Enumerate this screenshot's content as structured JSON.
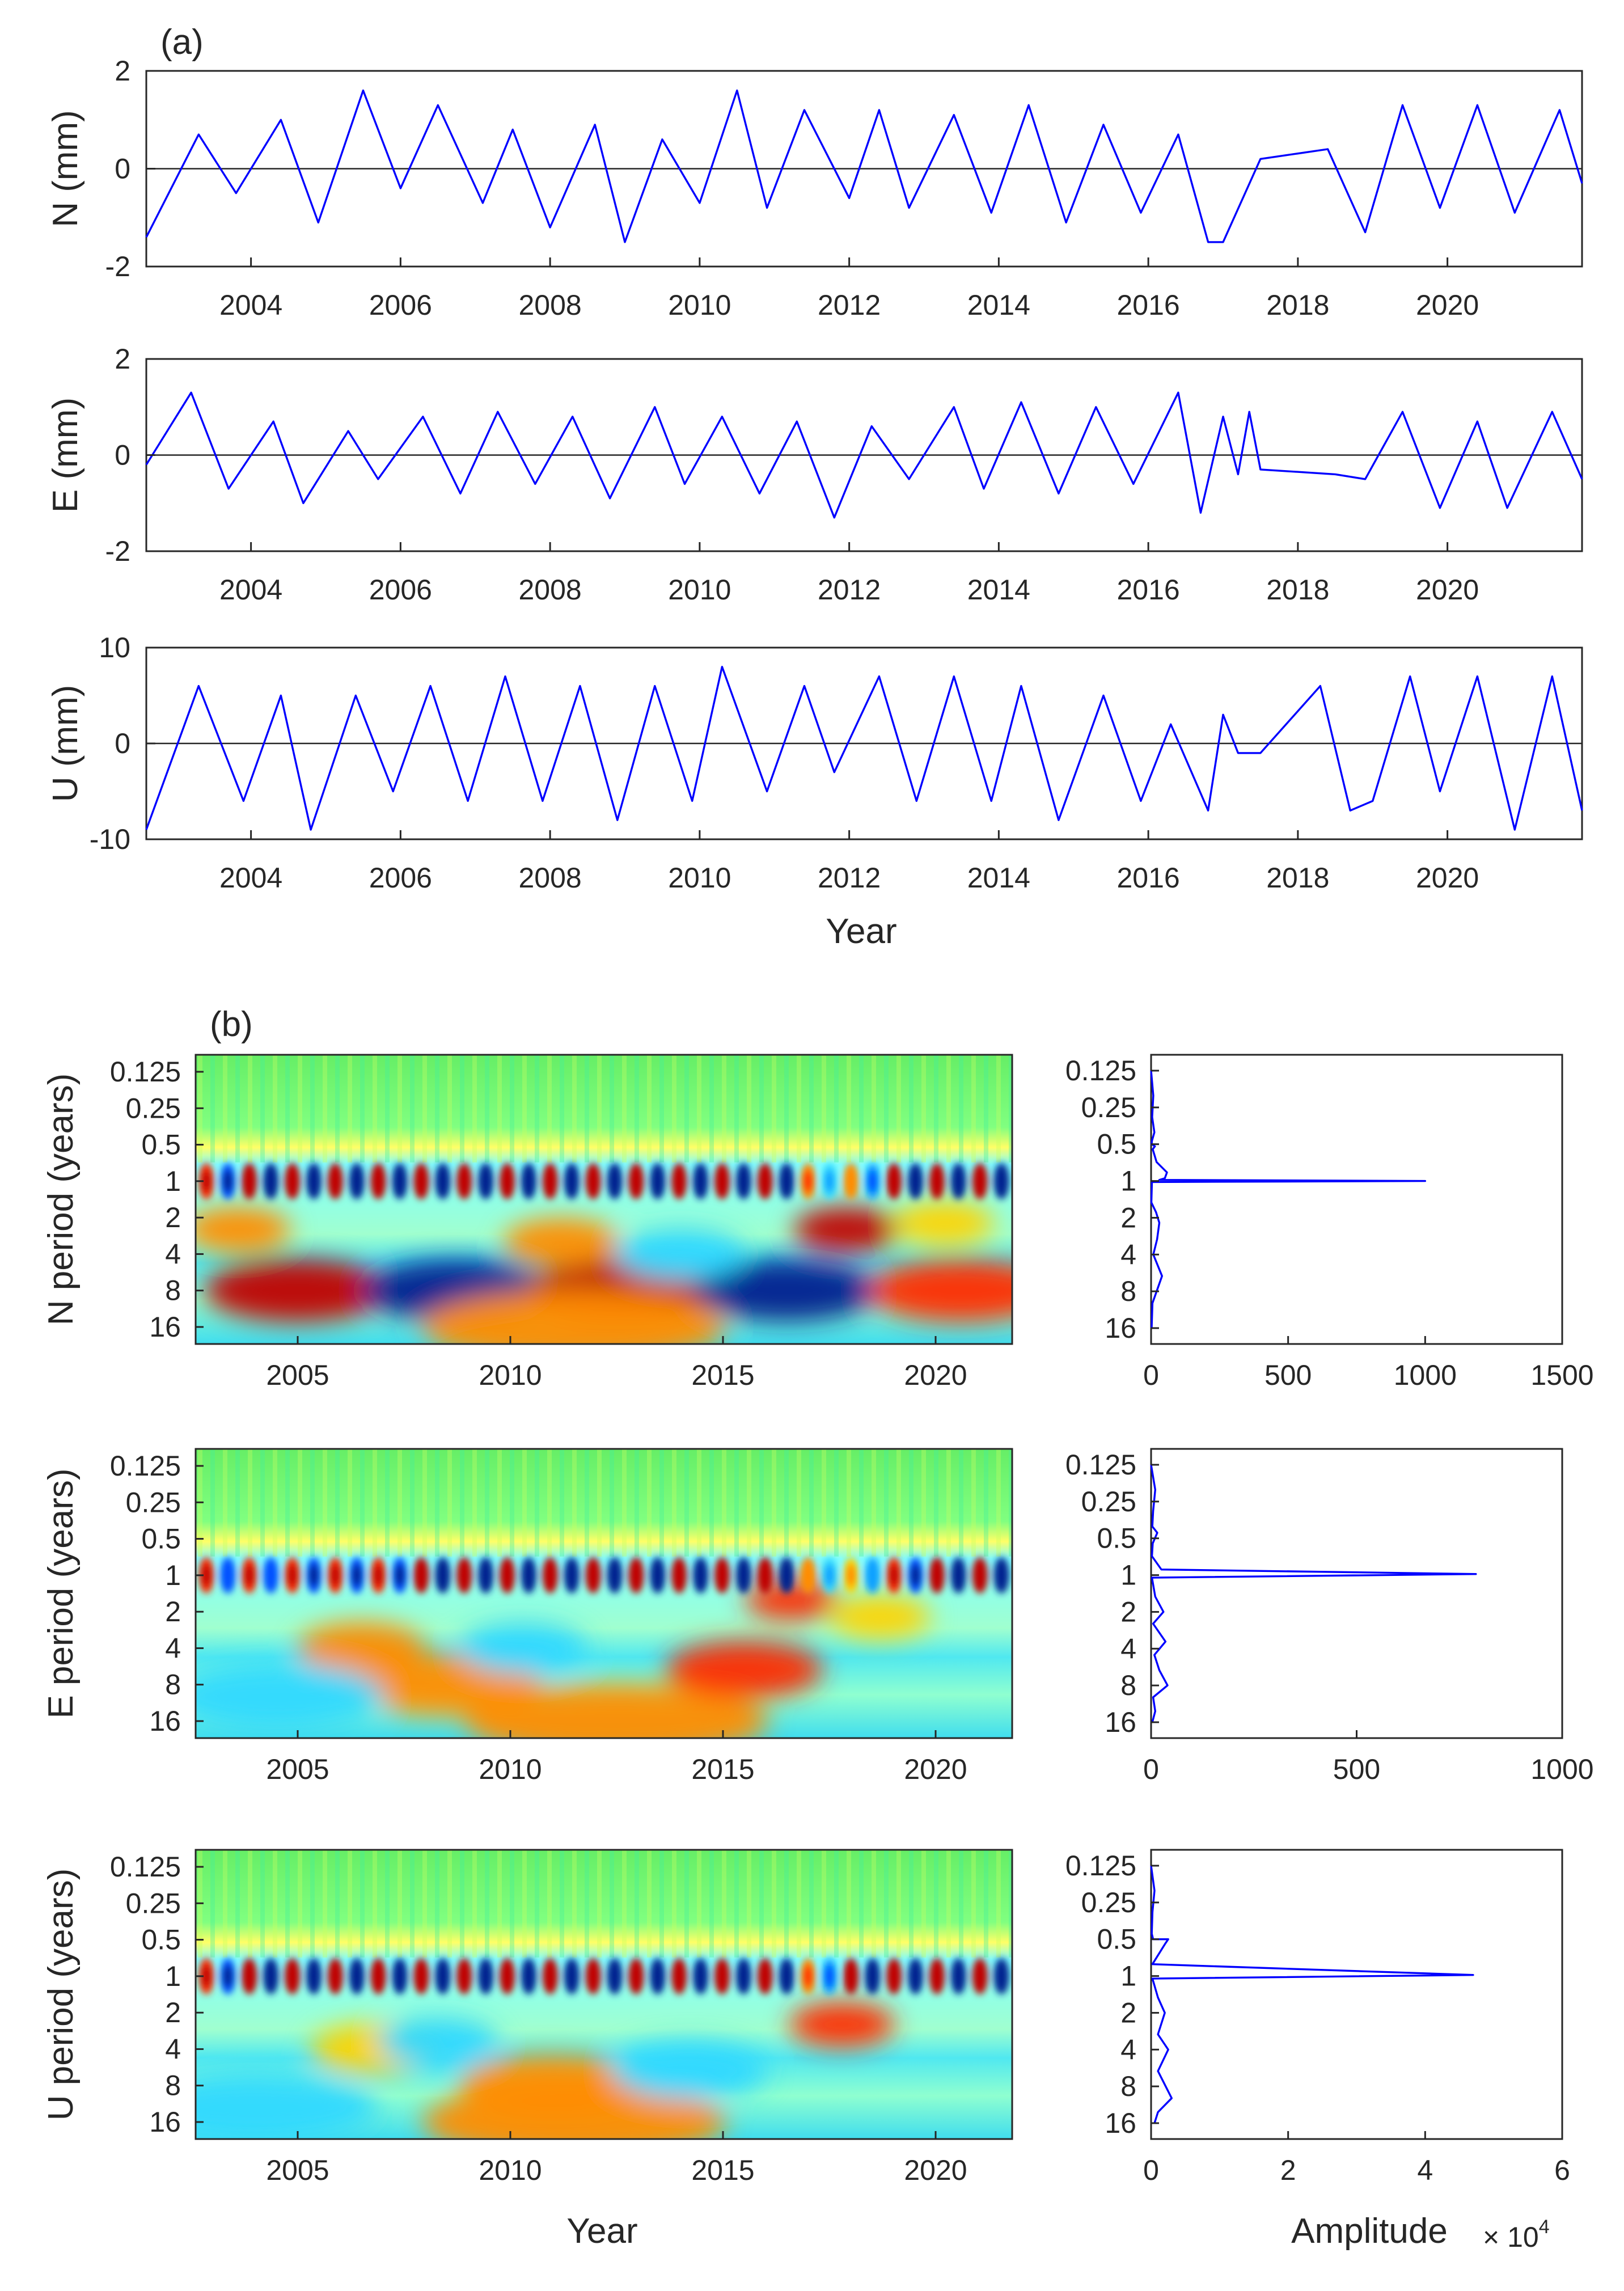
{
  "colors": {
    "line": "#0000ff",
    "axis": "#262626"
  },
  "panel_a_label": "(a)",
  "panel_b_label": "(b)",
  "chart_data": [
    {
      "id": "N",
      "type": "line",
      "x": [
        2002.6,
        2003.3,
        2003.8,
        2004.4,
        2004.9,
        2005.5,
        2006.0,
        2006.5,
        2007.1,
        2007.5,
        2008.0,
        2008.6,
        2009.0,
        2009.5,
        2010.0,
        2010.5,
        2010.9,
        2011.4,
        2012.0,
        2012.4,
        2012.8,
        2013.4,
        2013.9,
        2014.4,
        2014.9,
        2015.4,
        2015.9,
        2016.4,
        2016.8,
        2017.0,
        2017.5,
        2018.4,
        2018.9,
        2019.4,
        2019.9,
        2020.4,
        2020.9,
        2021.5,
        2021.8
      ],
      "y": [
        -1.4,
        0.7,
        -0.5,
        1.0,
        -1.1,
        1.6,
        -0.4,
        1.3,
        -0.7,
        0.8,
        -1.2,
        0.9,
        -1.5,
        0.6,
        -0.7,
        1.6,
        -0.8,
        1.2,
        -0.6,
        1.2,
        -0.8,
        1.1,
        -0.9,
        1.3,
        -1.1,
        0.9,
        -0.9,
        0.7,
        -1.5,
        -1.5,
        0.2,
        0.4,
        -1.3,
        1.3,
        -0.8,
        1.3,
        -0.9,
        1.2,
        -0.3
      ],
      "ylabel": "N (mm)",
      "xlabel": "",
      "xlim": [
        2002.6,
        2021.8
      ],
      "ylim": [
        -2,
        2
      ],
      "xticks": [
        "2004",
        "2006",
        "2008",
        "2010",
        "2012",
        "2014",
        "2016",
        "2018",
        "2020"
      ],
      "yticks": [
        "-2",
        "0",
        "2"
      ]
    },
    {
      "id": "E",
      "type": "line",
      "x": [
        2002.6,
        2003.2,
        2003.7,
        2004.3,
        2004.7,
        2005.3,
        2005.7,
        2006.3,
        2006.8,
        2007.3,
        2007.8,
        2008.3,
        2008.8,
        2009.4,
        2009.8,
        2010.3,
        2010.8,
        2011.3,
        2011.8,
        2012.3,
        2012.8,
        2013.4,
        2013.8,
        2014.3,
        2014.8,
        2015.3,
        2015.8,
        2016.4,
        2016.7,
        2017.0,
        2017.2,
        2017.35,
        2017.5,
        2018.5,
        2018.9,
        2019.4,
        2019.9,
        2020.4,
        2020.8,
        2021.4,
        2021.8
      ],
      "y": [
        -0.2,
        1.3,
        -0.7,
        0.7,
        -1.0,
        0.5,
        -0.5,
        0.8,
        -0.8,
        0.9,
        -0.6,
        0.8,
        -0.9,
        1.0,
        -0.6,
        0.8,
        -0.8,
        0.7,
        -1.3,
        0.6,
        -0.5,
        1.0,
        -0.7,
        1.1,
        -0.8,
        1.0,
        -0.6,
        1.3,
        -1.2,
        0.8,
        -0.4,
        0.9,
        -0.3,
        -0.4,
        -0.5,
        0.9,
        -1.1,
        0.7,
        -1.1,
        0.9,
        -0.5
      ],
      "ylabel": "E (mm)",
      "xlabel": "",
      "xlim": [
        2002.6,
        2021.8
      ],
      "ylim": [
        -2,
        2
      ],
      "xticks": [
        "2004",
        "2006",
        "2008",
        "2010",
        "2012",
        "2014",
        "2016",
        "2018",
        "2020"
      ],
      "yticks": [
        "-2",
        "0",
        "2"
      ]
    },
    {
      "id": "U",
      "type": "line",
      "x": [
        2002.6,
        2003.3,
        2003.9,
        2004.4,
        2004.8,
        2005.4,
        2005.9,
        2006.4,
        2006.9,
        2007.4,
        2007.9,
        2008.4,
        2008.9,
        2009.4,
        2009.9,
        2010.3,
        2010.9,
        2011.4,
        2011.8,
        2012.4,
        2012.9,
        2013.4,
        2013.9,
        2014.3,
        2014.8,
        2015.4,
        2015.9,
        2016.3,
        2016.8,
        2017.0,
        2017.2,
        2017.5,
        2018.3,
        2018.7,
        2019.0,
        2019.5,
        2019.9,
        2020.4,
        2020.9,
        2021.4,
        2021.8
      ],
      "y": [
        -9,
        6,
        -6,
        5,
        -9,
        5,
        -5,
        6,
        -6,
        7,
        -6,
        6,
        -8,
        6,
        -6,
        8,
        -5,
        6,
        -3,
        7,
        -6,
        7,
        -6,
        6,
        -8,
        5,
        -6,
        2,
        -7,
        3,
        -1,
        -1,
        6,
        -7,
        -6,
        7,
        -5,
        7,
        -9,
        7,
        -7
      ],
      "ylabel": "U (mm)",
      "xlabel": "Year",
      "xlim": [
        2002.6,
        2021.8
      ],
      "ylim": [
        -10,
        10
      ],
      "xticks": [
        "2004",
        "2006",
        "2008",
        "2010",
        "2012",
        "2014",
        "2016",
        "2018",
        "2020"
      ],
      "yticks": [
        "-10",
        "0",
        "10"
      ]
    },
    {
      "id": "N-scalogram",
      "type": "heatmap",
      "ylabel": "N period (years)",
      "xlabel": "",
      "xlim": [
        2002.6,
        2021.8
      ],
      "xticks": [
        "2005",
        "2010",
        "2015",
        "2020"
      ],
      "yticks": [
        "0.125",
        "0.25",
        "0.5",
        "1",
        "2",
        "4",
        "8",
        "16"
      ],
      "annual_signs": [
        1,
        -1,
        1,
        -1,
        1,
        -1,
        1,
        -1,
        1,
        -1,
        1,
        -1,
        1,
        -1,
        1,
        -1,
        1,
        -1,
        1,
        -1,
        1,
        -1,
        1,
        -1,
        1,
        -1,
        1,
        -1,
        1,
        -1,
        1,
        -1,
        1,
        -1,
        1,
        -1,
        1,
        -1
      ],
      "annual_strength": [
        0.8,
        0.8,
        0.85,
        0.85,
        0.9,
        0.9,
        0.9,
        0.9,
        0.85,
        0.85,
        0.9,
        0.9,
        0.95,
        0.95,
        0.9,
        0.9,
        0.95,
        0.95,
        0.9,
        0.9,
        0.95,
        0.95,
        0.95,
        0.95,
        0.9,
        0.9,
        0.95,
        0.95,
        0.6,
        0.4,
        0.5,
        0.6,
        0.9,
        0.9,
        0.95,
        0.95,
        0.9,
        0.9
      ],
      "blobs": [
        {
          "x": 2005.0,
          "p": 8,
          "value": 0.9
        },
        {
          "x": 2008.7,
          "p": 8,
          "value": -0.9
        },
        {
          "x": 2012.6,
          "p": 8,
          "value": 1.0
        },
        {
          "x": 2016.5,
          "p": 8,
          "value": -0.9
        },
        {
          "x": 2020.6,
          "p": 8,
          "value": 0.8
        },
        {
          "x": 2003.6,
          "p": 2.5,
          "value": 0.5
        },
        {
          "x": 2011.2,
          "p": 3.2,
          "value": 0.5
        },
        {
          "x": 2017.9,
          "p": 2.5,
          "value": 0.95
        },
        {
          "x": 2014.0,
          "p": 4,
          "value": -0.4
        },
        {
          "x": 2011.5,
          "p": 16,
          "value": 0.5
        },
        {
          "x": 2020.2,
          "p": 2.2,
          "value": 0.4
        }
      ]
    },
    {
      "id": "N-spectrum",
      "type": "line",
      "x": [
        0,
        8,
        4,
        12,
        3,
        2,
        14,
        6,
        20,
        58,
        50,
        30,
        1000,
        3,
        1,
        18,
        30,
        22,
        8,
        40,
        5,
        2
      ],
      "y": [
        0.125,
        0.2,
        0.3,
        0.4,
        0.47,
        0.5,
        0.52,
        0.55,
        0.7,
        0.85,
        0.95,
        0.98,
        1.0,
        1.02,
        1.5,
        1.8,
        2.2,
        3.0,
        4.0,
        6.0,
        10,
        16
      ],
      "ylabel": "",
      "xlabel": "",
      "xlim": [
        0,
        1500
      ],
      "ylim": [
        0.1,
        20
      ],
      "xticks": [
        "0",
        "500",
        "1000",
        "1500"
      ],
      "yticks": [
        "0.125",
        "0.25",
        "0.5",
        "1",
        "2",
        "4",
        "8",
        "16"
      ]
    },
    {
      "id": "E-scalogram",
      "type": "heatmap",
      "ylabel": "E period (years)",
      "xlabel": "",
      "xlim": [
        2002.6,
        2021.8
      ],
      "xticks": [
        "2005",
        "2010",
        "2015",
        "2020"
      ],
      "yticks": [
        "0.125",
        "0.25",
        "0.5",
        "1",
        "2",
        "4",
        "8",
        "16"
      ],
      "annual_signs": [
        1,
        -1,
        1,
        -1,
        1,
        -1,
        1,
        -1,
        1,
        -1,
        1,
        -1,
        1,
        -1,
        1,
        -1,
        1,
        -1,
        1,
        -1,
        1,
        -1,
        1,
        -1,
        1,
        -1,
        1,
        -1,
        1,
        -1,
        1,
        -1,
        1,
        -1,
        1,
        -1,
        1,
        -1
      ],
      "annual_strength": [
        0.8,
        0.7,
        0.75,
        0.7,
        0.75,
        0.75,
        0.8,
        0.8,
        0.8,
        0.8,
        0.85,
        0.85,
        0.85,
        0.85,
        0.85,
        0.85,
        0.9,
        0.9,
        0.85,
        0.85,
        0.9,
        0.9,
        0.95,
        0.95,
        0.95,
        0.95,
        0.95,
        0.95,
        0.5,
        0.4,
        0.4,
        0.5,
        0.8,
        0.8,
        0.9,
        0.9,
        0.9,
        0.9
      ],
      "blobs": [
        {
          "x": 2006.5,
          "p": 4,
          "value": 0.45
        },
        {
          "x": 2008.5,
          "p": 8,
          "value": 0.5
        },
        {
          "x": 2012.5,
          "p": 16,
          "value": 0.55
        },
        {
          "x": 2015.5,
          "p": 6,
          "value": 0.7
        },
        {
          "x": 2016.6,
          "p": 1.6,
          "value": 0.8
        },
        {
          "x": 2010.3,
          "p": 4,
          "value": -0.4
        },
        {
          "x": 2018.7,
          "p": 2.2,
          "value": 0.4
        },
        {
          "x": 2004.5,
          "p": 10,
          "value": -0.3
        }
      ]
    },
    {
      "id": "E-spectrum",
      "type": "line",
      "x": [
        0,
        10,
        5,
        3,
        15,
        4,
        2,
        25,
        790,
        2,
        10,
        30,
        5,
        35,
        8,
        20,
        40,
        5,
        10,
        3
      ],
      "y": [
        0.125,
        0.2,
        0.3,
        0.4,
        0.45,
        0.55,
        0.7,
        0.9,
        0.98,
        1.05,
        1.5,
        2.0,
        2.5,
        3.5,
        4.5,
        6,
        8,
        10,
        13,
        16
      ],
      "ylabel": "",
      "xlabel": "",
      "xlim": [
        0,
        1000
      ],
      "ylim": [
        0.1,
        20
      ],
      "xticks": [
        "0",
        "500",
        "1000"
      ],
      "yticks": [
        "0.125",
        "0.25",
        "0.5",
        "1",
        "2",
        "4",
        "8",
        "16"
      ]
    },
    {
      "id": "U-scalogram",
      "type": "heatmap",
      "ylabel": "U period (years)",
      "xlabel": "Year",
      "xlim": [
        2002.6,
        2021.8
      ],
      "xticks": [
        "2005",
        "2010",
        "2015",
        "2020"
      ],
      "yticks": [
        "0.125",
        "0.25",
        "0.5",
        "1",
        "2",
        "4",
        "8",
        "16"
      ],
      "annual_signs": [
        1,
        -1,
        1,
        -1,
        1,
        -1,
        1,
        -1,
        1,
        -1,
        1,
        -1,
        1,
        -1,
        1,
        -1,
        1,
        -1,
        1,
        -1,
        1,
        -1,
        1,
        -1,
        1,
        -1,
        1,
        -1,
        1,
        -1,
        1,
        -1,
        1,
        -1,
        1,
        -1,
        1,
        -1
      ],
      "annual_strength": [
        0.8,
        0.8,
        0.85,
        0.85,
        0.85,
        0.85,
        0.9,
        0.9,
        0.9,
        0.9,
        0.9,
        0.9,
        0.9,
        0.9,
        0.95,
        0.95,
        0.95,
        0.95,
        0.85,
        0.85,
        0.9,
        0.9,
        0.9,
        0.9,
        0.85,
        0.85,
        0.85,
        0.85,
        0.6,
        0.6,
        0.85,
        0.85,
        0.9,
        0.9,
        0.95,
        0.95,
        0.9,
        0.9
      ],
      "blobs": [
        {
          "x": 2006.8,
          "p": 4,
          "value": 0.4
        },
        {
          "x": 2011.5,
          "p": 16,
          "value": 0.6
        },
        {
          "x": 2011.0,
          "p": 8,
          "value": 0.45
        },
        {
          "x": 2017.8,
          "p": 2.5,
          "value": 0.8
        },
        {
          "x": 2008.3,
          "p": 3.5,
          "value": -0.3
        },
        {
          "x": 2014.2,
          "p": 6,
          "value": -0.3
        },
        {
          "x": 2004.0,
          "p": 12,
          "value": -0.3
        }
      ]
    },
    {
      "id": "U-spectrum",
      "type": "line",
      "x": [
        0,
        0.05,
        0.02,
        0.01,
        0.03,
        0.25,
        0.2,
        0.02,
        4.7,
        0.02,
        0.1,
        0.2,
        0.1,
        0.25,
        0.1,
        0.3,
        0.1,
        0.05
      ],
      "y": [
        0.125,
        0.2,
        0.3,
        0.45,
        0.5,
        0.5,
        0.55,
        0.8,
        0.98,
        1.05,
        1.5,
        2.0,
        3.0,
        4.0,
        6.0,
        10,
        13,
        16
      ],
      "ylabel": "",
      "xlabel": "Amplitude",
      "xlim": [
        0,
        6
      ],
      "ylim": [
        0.1,
        20
      ],
      "xticks": [
        "0",
        "2",
        "4",
        "6"
      ],
      "yticks": [
        "0.125",
        "0.25",
        "0.5",
        "1",
        "2",
        "4",
        "8",
        "16"
      ],
      "exponent_label": "× 10",
      "exponent_power": "4"
    }
  ]
}
